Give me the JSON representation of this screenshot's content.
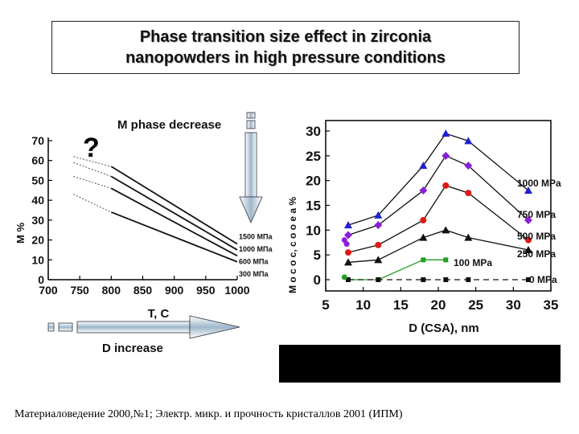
{
  "title": {
    "line1": "Phase transition size effect in zirconia",
    "line2": "nanopowders  in high pressure conditions"
  },
  "footer": "Материаловедение 2000,№1; Электр. микр. и прочность кристаллов 2001 (ИПМ)",
  "colors": {
    "c1000": "#1f1fd0",
    "c750": "#8a1fd8",
    "c500": "#e01818",
    "c250": "#111111",
    "c100": "#20a020",
    "c0": "#111111",
    "arrow_fill": "#9fb8cc",
    "arrow_fill_light": "#cfe0ea"
  },
  "chart_data": [
    {
      "type": "line",
      "annotations": {
        "question": "?",
        "top_label": "M phase decrease",
        "bottom_label": "D increase"
      },
      "xlabel": "T, C",
      "ylabel": "M %",
      "xlim": [
        700,
        1000
      ],
      "ylim": [
        0,
        70
      ],
      "xticks": [
        "700",
        "750",
        "800",
        "850",
        "900",
        "950",
        "1000"
      ],
      "yticks": [
        "0",
        "10",
        "20",
        "30",
        "40",
        "50",
        "60",
        "70"
      ],
      "series": [
        {
          "name": "1500 МПа",
          "x": [
            800,
            1000
          ],
          "y": [
            57,
            18
          ],
          "dashed_x": [
            740,
            800
          ],
          "dashed_y": [
            62,
            57
          ]
        },
        {
          "name": "1000 МПа",
          "x": [
            800,
            1000
          ],
          "y": [
            52,
            15
          ],
          "dashed_x": [
            740,
            800
          ],
          "dashed_y": [
            59,
            52
          ]
        },
        {
          "name": "600 МПа",
          "x": [
            800,
            1000
          ],
          "y": [
            46,
            12
          ],
          "dashed_x": [
            740,
            800
          ],
          "dashed_y": [
            52,
            46
          ]
        },
        {
          "name": "300 МПа",
          "x": [
            800,
            1000
          ],
          "y": [
            34,
            9
          ],
          "dashed_x": [
            740,
            800
          ],
          "dashed_y": [
            43,
            34
          ]
        }
      ]
    },
    {
      "type": "line",
      "xlabel": "D (CSA), nm",
      "ylabel": "M o c o c, c o o e a %",
      "xlim": [
        5,
        35
      ],
      "ylim": [
        0,
        30
      ],
      "xticks": [
        "5",
        "10",
        "15",
        "20",
        "25",
        "30",
        "35"
      ],
      "yticks": [
        "0",
        "5",
        "10",
        "15",
        "20",
        "25",
        "30"
      ],
      "series": [
        {
          "name": "1000 MPa",
          "x": [
            8,
            12,
            18,
            21,
            24,
            32
          ],
          "y": [
            11,
            13,
            23,
            29.5,
            28,
            18
          ]
        },
        {
          "name": "750 MPa",
          "x": [
            8,
            12,
            18,
            21,
            24,
            32
          ],
          "y": [
            9,
            11,
            18,
            25,
            23,
            12
          ]
        },
        {
          "name": "500 MPa",
          "x": [
            8,
            12,
            18,
            21,
            24,
            32
          ],
          "y": [
            5.5,
            7,
            12,
            19,
            17.5,
            8
          ]
        },
        {
          "name": "250 MPa",
          "x": [
            8,
            12,
            18,
            21,
            24,
            32
          ],
          "y": [
            3.5,
            4,
            8.5,
            10,
            8.5,
            6
          ]
        },
        {
          "name": "100 MPa",
          "x": [
            8,
            12,
            18,
            21
          ],
          "y": [
            0,
            0,
            4,
            4
          ]
        },
        {
          "name": "0 MPa",
          "x": [
            8,
            12,
            18,
            21,
            24,
            32
          ],
          "y": [
            0,
            0,
            0,
            0,
            0,
            0
          ]
        }
      ],
      "extra_points": [
        {
          "x": 7.5,
          "y": 8
        },
        {
          "x": 7.8,
          "y": 7.2
        },
        {
          "x": 7.5,
          "y": 0.5
        }
      ]
    }
  ]
}
